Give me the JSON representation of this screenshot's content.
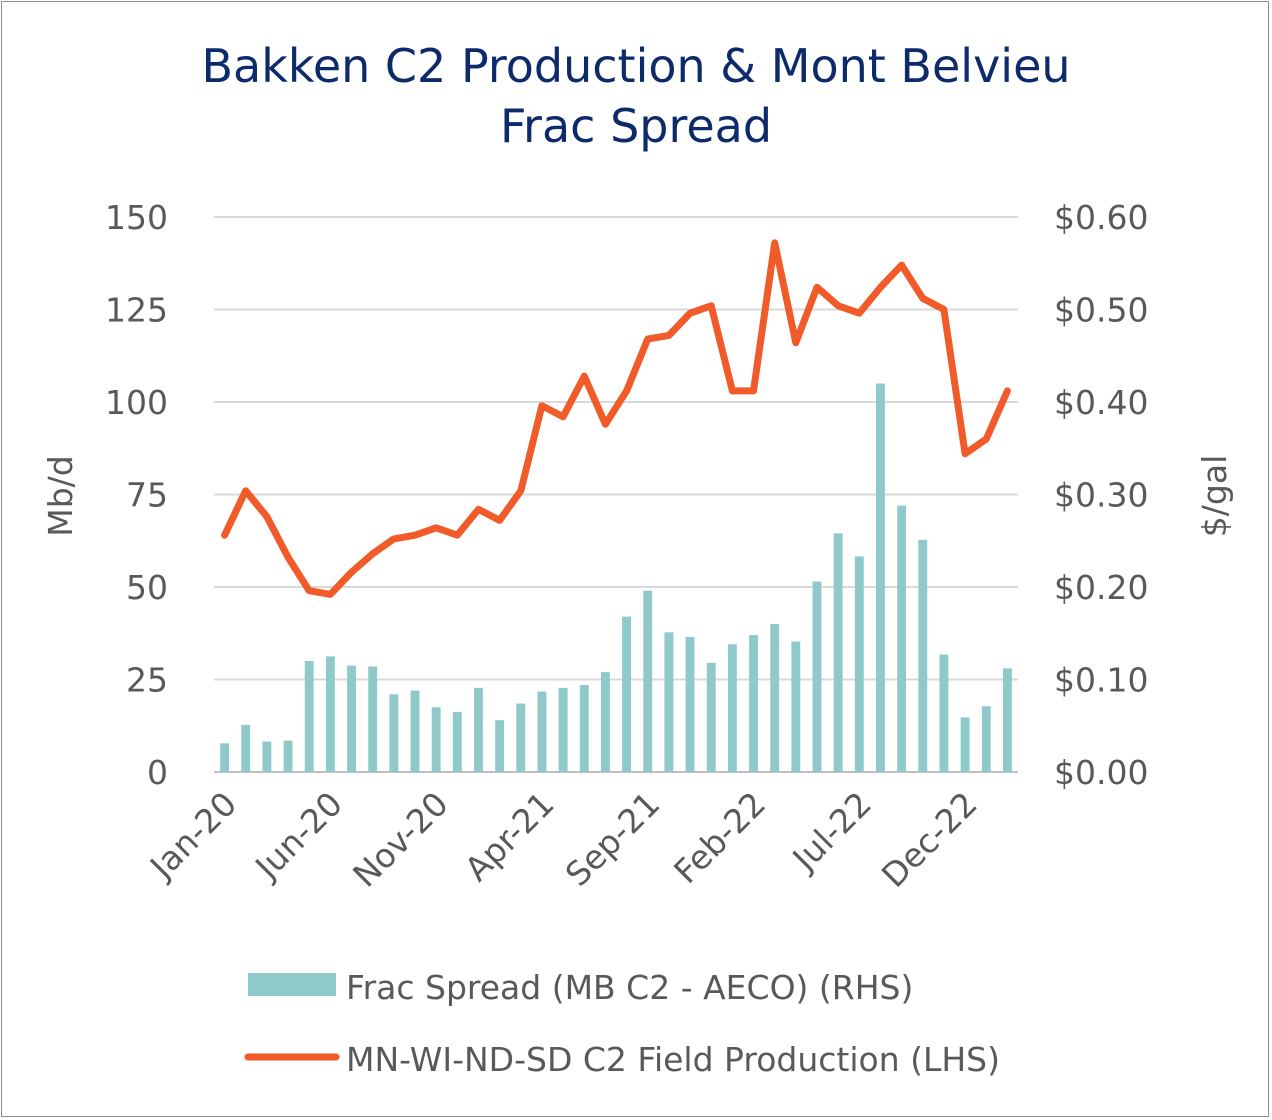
{
  "chart_data": {
    "type": "bar+line",
    "title_line1": "Bakken C2 Production & Mont Belvieu",
    "title_line2": "Frac Spread",
    "ylabel_left": "Mb/d",
    "ylabel_right": "$/gal",
    "ylim_left": [
      0,
      150
    ],
    "ylim_right": [
      0,
      0.6
    ],
    "left_ticks": [
      "0",
      "25",
      "50",
      "75",
      "100",
      "125",
      "150"
    ],
    "right_ticks": [
      "$0.00",
      "$0.10",
      "$0.20",
      "$0.30",
      "$0.40",
      "$0.50",
      "$0.60"
    ],
    "x_tick_labels": [
      "Jan-20",
      "Jun-20",
      "Nov-20",
      "Apr-21",
      "Sep-21",
      "Feb-22",
      "Jul-22",
      "Dec-22"
    ],
    "x_tick_indices": [
      0,
      5,
      10,
      15,
      20,
      25,
      30,
      35
    ],
    "grid": true,
    "legend_position": "bottom",
    "colors": {
      "bars": "#8fc9c9",
      "line": "#f15a29",
      "grid": "#d9d9d9",
      "title": "#0d2a6b",
      "axis_text": "#595959"
    },
    "categories": [
      "Jan-20",
      "Feb-20",
      "Mar-20",
      "Apr-20",
      "May-20",
      "Jun-20",
      "Jul-20",
      "Aug-20",
      "Sep-20",
      "Oct-20",
      "Nov-20",
      "Dec-20",
      "Jan-21",
      "Feb-21",
      "Mar-21",
      "Apr-21",
      "May-21",
      "Jun-21",
      "Jul-21",
      "Aug-21",
      "Sep-21",
      "Oct-21",
      "Nov-21",
      "Dec-21",
      "Jan-22",
      "Feb-22",
      "Mar-22",
      "Apr-22",
      "May-22",
      "Jun-22",
      "Jul-22",
      "Aug-22",
      "Sep-22",
      "Oct-22",
      "Nov-22",
      "Dec-22",
      "Jan-23",
      "Feb-23"
    ],
    "series": [
      {
        "name": "Frac Spread (MB C2 - AECO) (RHS)",
        "type": "bar",
        "axis": "right",
        "values": [
          0.031,
          0.051,
          0.033,
          0.034,
          0.12,
          0.125,
          0.115,
          0.114,
          0.084,
          0.088,
          0.07,
          0.065,
          0.091,
          0.056,
          0.074,
          0.087,
          0.091,
          0.094,
          0.108,
          0.168,
          0.196,
          0.151,
          0.146,
          0.118,
          0.138,
          0.148,
          0.16,
          0.141,
          0.206,
          0.258,
          0.233,
          0.42,
          0.288,
          0.251,
          0.127,
          0.059,
          0.071,
          0.112
        ]
      },
      {
        "name": "MN-WI-ND-SD C2 Field Production (LHS)",
        "type": "line",
        "axis": "left",
        "values": [
          64,
          76,
          69,
          58,
          49,
          48,
          54,
          59,
          63,
          64,
          66,
          64,
          71,
          68,
          76,
          99,
          96,
          107,
          94,
          103,
          117,
          118,
          124,
          126,
          103,
          103,
          143,
          116,
          131,
          126,
          124,
          131,
          137,
          128,
          125,
          86,
          90,
          103
        ]
      }
    ]
  }
}
